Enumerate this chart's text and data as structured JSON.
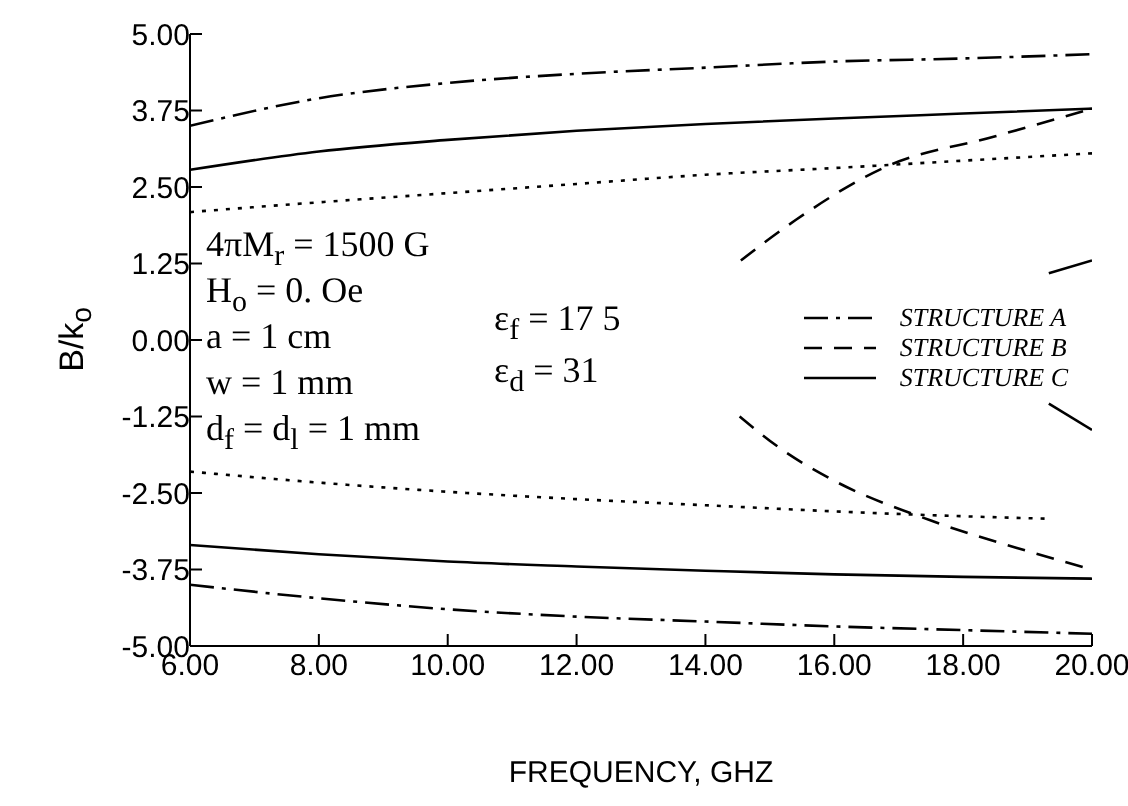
{
  "chart_data": {
    "type": "line",
    "xlabel": "FREQUENCY, GHZ",
    "ylabel": "B/k$_{o}$",
    "annotations": [
      "4πM$_{r}$ = 1500 G",
      "H$_{o}$ = 0. Oe",
      "a = 1 cm",
      "w = 1 mm",
      "d$_{f}$ = d$_{l}$ = 1 mm",
      "ε$_{f}$ = 17 5",
      "ε$_{d}$ = 31"
    ],
    "xlim": [
      6,
      20
    ],
    "ylim": [
      -5,
      5
    ],
    "xticks": [
      {
        "value": 6,
        "label": "6.00"
      },
      {
        "value": 8,
        "label": "8.00"
      },
      {
        "value": 10,
        "label": "10.00"
      },
      {
        "value": 12,
        "label": "12.00"
      },
      {
        "value": 14,
        "label": "14.00"
      },
      {
        "value": 16,
        "label": "16.00"
      },
      {
        "value": 18,
        "label": "18.00"
      },
      {
        "value": 20,
        "label": "20.00"
      }
    ],
    "yticks": [
      {
        "value": 5,
        "label": "5.00"
      },
      {
        "value": 3.75,
        "label": "3.75"
      },
      {
        "value": 2.5,
        "label": "2.50"
      },
      {
        "value": 1.25,
        "label": "1.25"
      },
      {
        "value": 0,
        "label": "0.00"
      },
      {
        "value": -1.25,
        "label": "-1.25"
      },
      {
        "value": -2.5,
        "label": "-2.50"
      },
      {
        "value": -3.75,
        "label": "-3.75"
      },
      {
        "value": -5,
        "label": "-5.00"
      }
    ],
    "grid": false,
    "legend": "right",
    "marker": "none",
    "series": [
      {
        "name": "STRUCTURE A",
        "color": "#000000",
        "line_style": "dashdot",
        "x": [
          6,
          8,
          10,
          12,
          14,
          16,
          18,
          20
        ],
        "values": [
          3.5,
          3.95,
          4.2,
          4.35,
          4.45,
          4.55,
          4.6,
          4.67
        ]
      },
      {
        "color": "#000000",
        "line_style": "dashdot",
        "x": [
          6,
          8,
          10,
          12,
          14,
          16,
          18,
          20
        ],
        "values": [
          -4.0,
          -4.22,
          -4.4,
          -4.52,
          -4.6,
          -4.68,
          -4.74,
          -4.8
        ]
      },
      {
        "color": "#000000",
        "line_style": "dotted",
        "x": [
          6,
          8,
          10,
          12,
          14,
          16,
          18,
          20
        ],
        "values": [
          2.09,
          2.25,
          2.4,
          2.55,
          2.7,
          2.81,
          2.93,
          3.05
        ]
      },
      {
        "color": "#000000",
        "line_style": "dotted",
        "x": [
          6,
          8,
          10,
          12,
          14,
          16,
          18,
          19.3
        ],
        "values": [
          -2.15,
          -2.33,
          -2.48,
          -2.6,
          -2.7,
          -2.8,
          -2.88,
          -2.92
        ]
      },
      {
        "name": "STRUCTURE B",
        "color": "#000000",
        "line_style": "dashed",
        "x": [
          14.55,
          15.4,
          16.8,
          18.5,
          20
        ],
        "values": [
          1.3,
          1.96,
          2.83,
          3.33,
          3.78
        ]
      },
      {
        "color": "#000000",
        "line_style": "dashed",
        "x": [
          14.53,
          15.2,
          16,
          17.5,
          19,
          20
        ],
        "values": [
          -1.25,
          -1.8,
          -2.3,
          -2.95,
          -3.45,
          -3.75
        ]
      },
      {
        "name": "STRUCTURE C",
        "color": "#000000",
        "line_style": "solid",
        "x": [
          6,
          8,
          10,
          12,
          14,
          16,
          18,
          20
        ],
        "values": [
          2.78,
          3.08,
          3.27,
          3.42,
          3.53,
          3.62,
          3.7,
          3.78
        ]
      },
      {
        "color": "#000000",
        "line_style": "solid",
        "x": [
          6,
          8,
          10,
          12,
          14,
          16,
          18,
          20
        ],
        "values": [
          -3.35,
          -3.5,
          -3.62,
          -3.7,
          -3.77,
          -3.83,
          -3.87,
          -3.9
        ]
      },
      {
        "color": "#000000",
        "line_style": "solid",
        "x": [
          19.33,
          20
        ],
        "values": [
          1.09,
          1.3
        ]
      },
      {
        "color": "#000000",
        "line_style": "solid",
        "x": [
          19.33,
          20
        ],
        "values": [
          -1.04,
          -1.47
        ]
      }
    ]
  }
}
